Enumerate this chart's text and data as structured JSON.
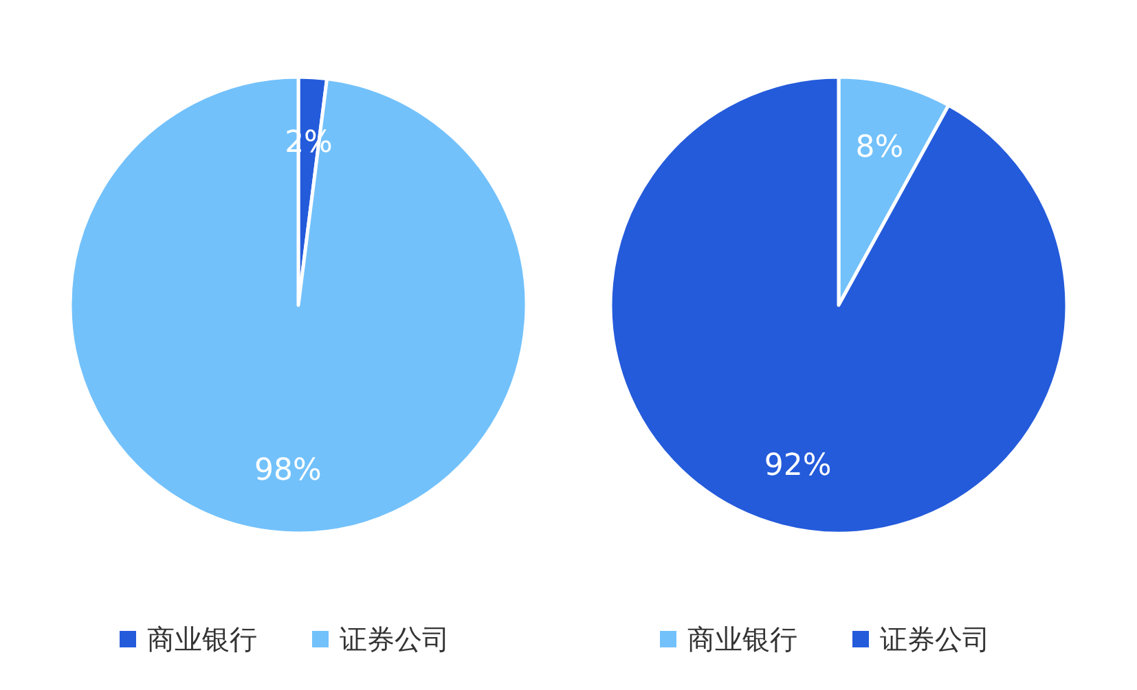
{
  "chart_data": [
    {
      "type": "pie",
      "categories": [
        "商业银行",
        "证券公司"
      ],
      "values": [
        2,
        98
      ],
      "colors": [
        "#245bdb",
        "#72c1fb"
      ],
      "value_labels": [
        "2%",
        "98%"
      ],
      "legend": "bottom"
    },
    {
      "type": "pie",
      "categories": [
        "商业银行",
        "证券公司"
      ],
      "values": [
        8,
        92
      ],
      "colors": [
        "#72c1fb",
        "#245bdb"
      ],
      "value_labels": [
        "8%",
        "92%"
      ],
      "legend": "bottom"
    }
  ]
}
